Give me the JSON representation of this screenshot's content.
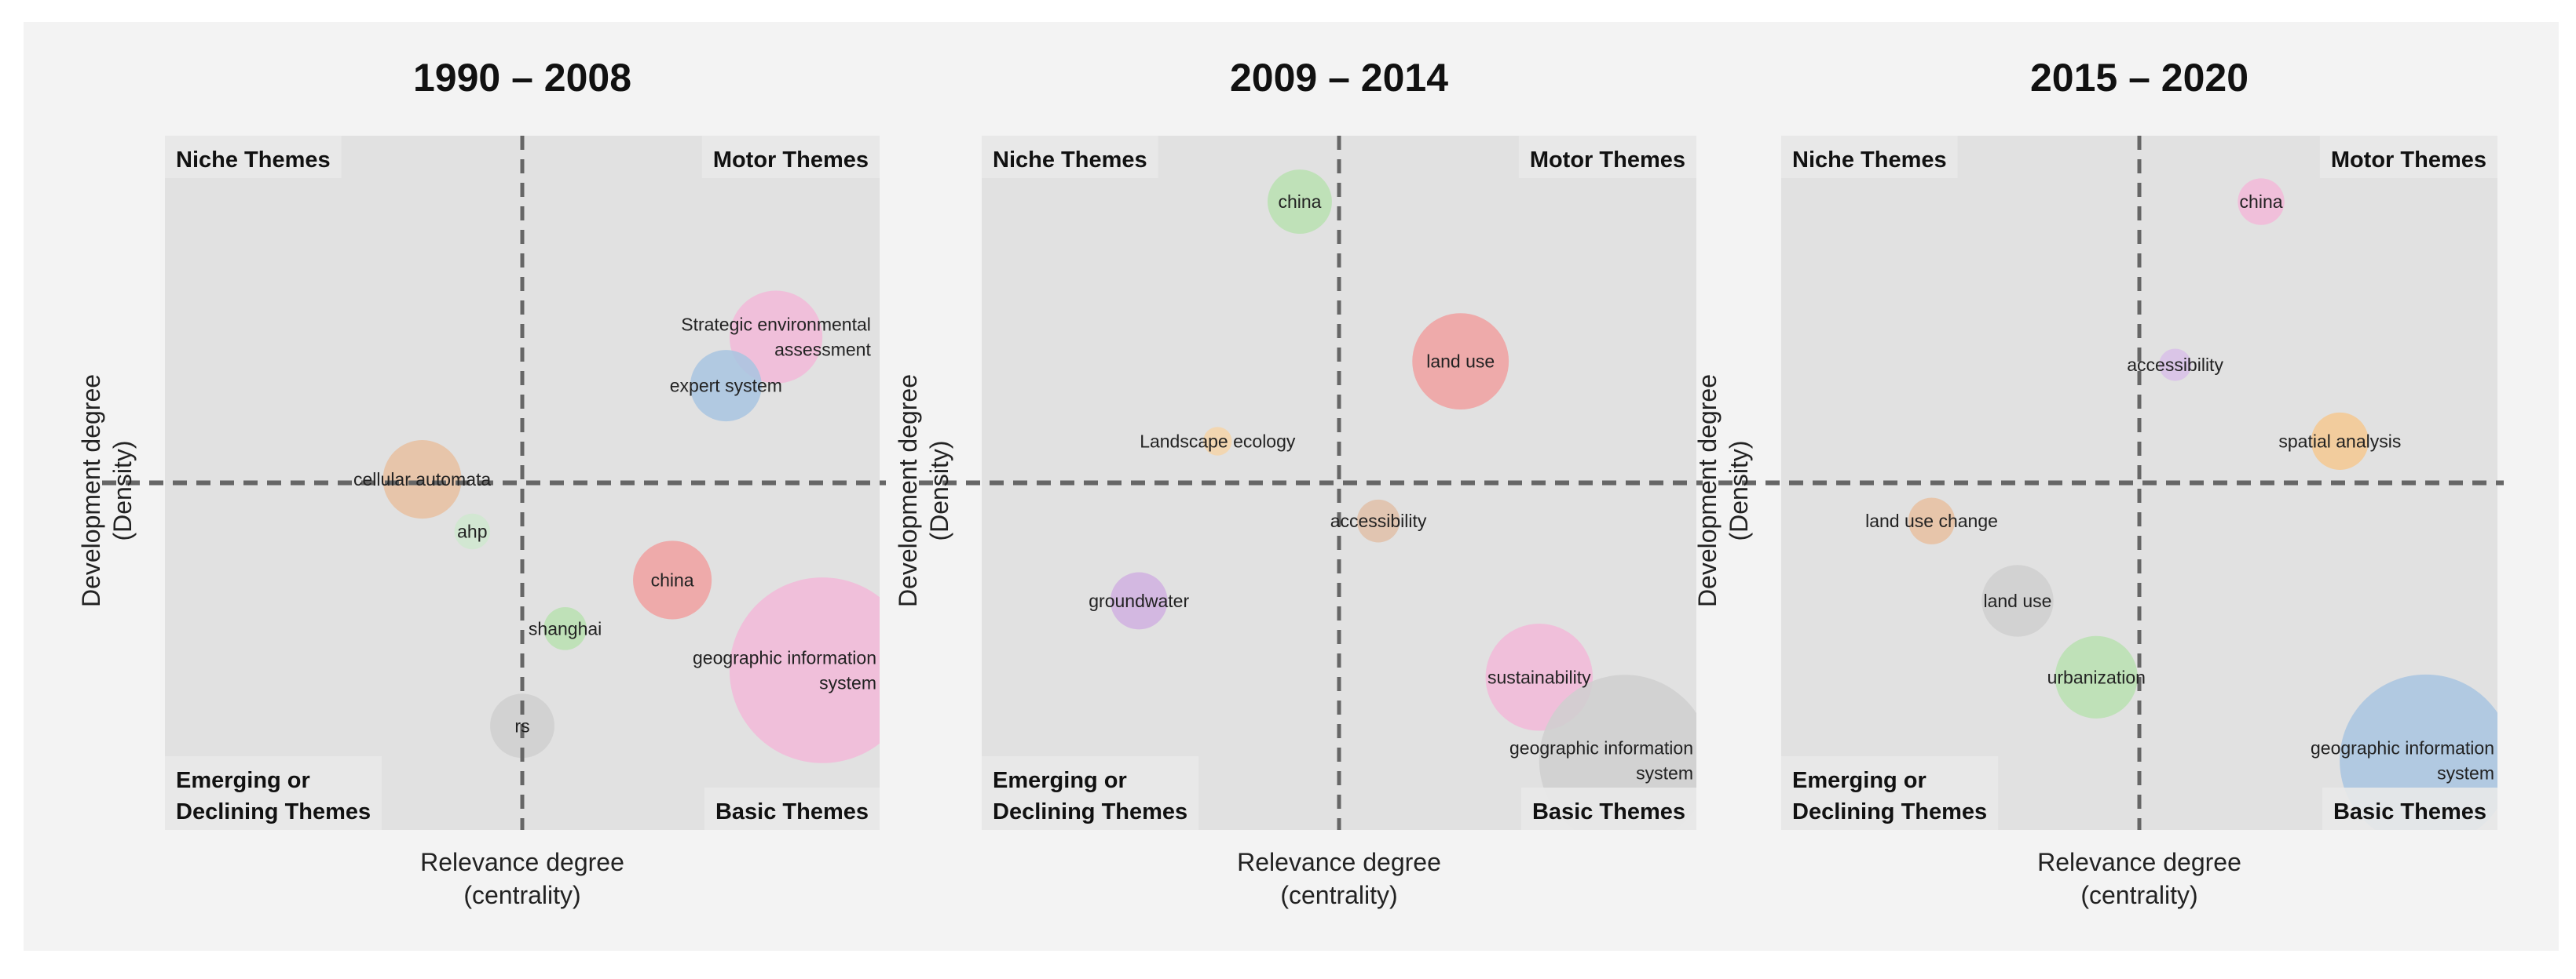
{
  "figure": {
    "quadrant_labels": {
      "niche": "Niche Themes",
      "motor": "Motor Themes",
      "emerging_line1": "Emerging or",
      "emerging_line2": "Declining Themes",
      "basic": "Basic Themes"
    },
    "y_label_line1": "Development degree",
    "y_label_line2": "(Density)",
    "x_label_line1": "Relevance degree",
    "x_label_line2": "(centrality)"
  },
  "chart_data": [
    {
      "type": "scatter",
      "title": "1990 – 2008",
      "xlabel": "Relevance degree (centrality)",
      "ylabel": "Development degree (Density)",
      "xlim": [
        0,
        100
      ],
      "ylim": [
        0,
        100
      ],
      "x_split": 50,
      "y_split": 50,
      "grid": false,
      "points": [
        {
          "label": "Strategic environmental assessment",
          "x": 85.5,
          "y": 71,
          "size": 13,
          "color": "#f2b8d8"
        },
        {
          "label": "expert system",
          "x": 78.5,
          "y": 64,
          "size": 10,
          "color": "#a8c4e0"
        },
        {
          "label": "cellular automata",
          "x": 36,
          "y": 50.5,
          "size": 11,
          "color": "#e8c0a0"
        },
        {
          "label": "ahp",
          "x": 43,
          "y": 43,
          "size": 5,
          "color": "#cfe8cf"
        },
        {
          "label": "china",
          "x": 71,
          "y": 36,
          "size": 11,
          "color": "#f0a0a0"
        },
        {
          "label": "shanghai",
          "x": 56,
          "y": 29,
          "size": 6,
          "color": "#b8e0b0"
        },
        {
          "label": "geographic information system",
          "x": 92,
          "y": 23,
          "size": 26,
          "color": "#f2b8d8"
        },
        {
          "label": "rs",
          "x": 50,
          "y": 15,
          "size": 9,
          "color": "#cfcfcf"
        }
      ]
    },
    {
      "type": "scatter",
      "title": "2009 – 2014",
      "xlabel": "Relevance degree (centrality)",
      "ylabel": "Development degree (Density)",
      "xlim": [
        0,
        100
      ],
      "ylim": [
        0,
        100
      ],
      "x_split": 50,
      "y_split": 50,
      "grid": false,
      "points": [
        {
          "label": "china",
          "x": 44.5,
          "y": 90.5,
          "size": 9,
          "color": "#b8e0b0"
        },
        {
          "label": "land use",
          "x": 67,
          "y": 67.5,
          "size": 13.5,
          "color": "#f0a0a0"
        },
        {
          "label": "Landscape ecology",
          "x": 33,
          "y": 56,
          "size": 4,
          "color": "#f5d4a8"
        },
        {
          "label": "accessibility",
          "x": 55.5,
          "y": 44.5,
          "size": 6,
          "color": "#e0c0a8"
        },
        {
          "label": "groundwater",
          "x": 22,
          "y": 33,
          "size": 8,
          "color": "#d0b0e0"
        },
        {
          "label": "sustainability",
          "x": 78,
          "y": 22,
          "size": 15,
          "color": "#f2b8d8"
        },
        {
          "label": "geographic information system",
          "x": 90,
          "y": 10,
          "size": 24,
          "color": "#cfcfcf"
        }
      ]
    },
    {
      "type": "scatter",
      "title": "2015 – 2020",
      "xlabel": "Relevance degree (centrality)",
      "ylabel": "Development degree (Density)",
      "xlim": [
        0,
        100
      ],
      "ylim": [
        0,
        100
      ],
      "x_split": 50,
      "y_split": 50,
      "grid": false,
      "points": [
        {
          "label": "china",
          "x": 67,
          "y": 90.5,
          "size": 6.5,
          "color": "#f2b8d8"
        },
        {
          "label": "accessibility",
          "x": 55,
          "y": 67,
          "size": 4.5,
          "color": "#d8c0e8"
        },
        {
          "label": "spatial analysis",
          "x": 78,
          "y": 56,
          "size": 8,
          "color": "#f5c890"
        },
        {
          "label": "land use change",
          "x": 21,
          "y": 44.5,
          "size": 6.5,
          "color": "#e8c0a0"
        },
        {
          "label": "land use",
          "x": 33,
          "y": 33,
          "size": 10,
          "color": "#cfcfcf"
        },
        {
          "label": "urbanization",
          "x": 44,
          "y": 22,
          "size": 11.5,
          "color": "#b8e0b0"
        },
        {
          "label": "geographic information system",
          "x": 90,
          "y": 10,
          "size": 24,
          "color": "#a8c4e0"
        }
      ]
    }
  ]
}
